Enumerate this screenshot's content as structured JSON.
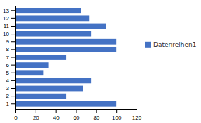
{
  "chart_data": {
    "type": "bar",
    "orientation": "horizontal",
    "categories": [
      "1",
      "2",
      "3",
      "4",
      "5",
      "6",
      "7",
      "8",
      "9",
      "10",
      "11",
      "12",
      "13"
    ],
    "series": [
      {
        "name": "Datenreihen1",
        "color": "#4472C4",
        "values": [
          100,
          50,
          67,
          75,
          28,
          33,
          50,
          100,
          100,
          75,
          90,
          73,
          65
        ]
      }
    ],
    "xlim": [
      0,
      120
    ],
    "xticks": [
      0,
      20,
      40,
      60,
      80,
      100,
      120
    ],
    "grid": false,
    "legend": "right"
  }
}
